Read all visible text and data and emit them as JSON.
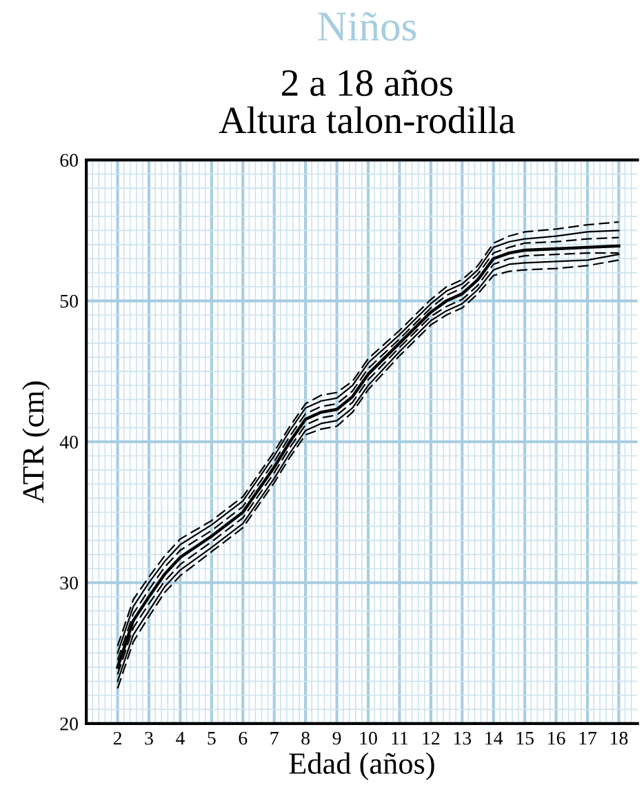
{
  "chart_data": {
    "type": "line",
    "title": "Niños",
    "subtitle": "2 a 18 años\nAltura talon-rodilla",
    "xlabel": "Edad (años)",
    "ylabel": "ATR (cm)",
    "x": [
      2,
      2.5,
      3,
      3.5,
      4,
      5,
      6,
      7,
      7.5,
      8,
      8.5,
      9,
      9.5,
      10,
      11,
      12,
      12.5,
      13,
      13.5,
      14,
      14.5,
      15,
      16,
      17,
      18
    ],
    "series": [
      {
        "color": "#000000",
        "line_style": "dashed",
        "values": [
          25.5,
          28.8,
          30.4,
          31.9,
          33.1,
          34.4,
          36.1,
          39.3,
          41.1,
          42.7,
          43.3,
          43.5,
          44.3,
          45.9,
          47.9,
          50.1,
          51.0,
          51.5,
          52.5,
          54.1,
          54.6,
          54.9,
          55.1,
          55.4,
          55.6
        ]
      },
      {
        "color": "#000000",
        "line_style": "solid",
        "values": [
          25.0,
          28.3,
          30.0,
          31.5,
          32.7,
          34.1,
          35.8,
          39.0,
          40.8,
          42.4,
          42.9,
          43.1,
          44.0,
          45.6,
          47.6,
          49.8,
          50.7,
          51.2,
          52.2,
          53.8,
          54.2,
          54.4,
          54.6,
          54.9,
          55.0
        ]
      },
      {
        "color": "#000000",
        "line_style": "dashed",
        "values": [
          24.5,
          27.8,
          29.5,
          31.1,
          32.3,
          33.7,
          35.4,
          38.6,
          40.4,
          42.0,
          42.5,
          42.7,
          43.6,
          45.2,
          47.3,
          49.5,
          50.4,
          50.9,
          51.9,
          53.4,
          53.8,
          54.1,
          54.2,
          54.4,
          54.5
        ]
      },
      {
        "color": "#000000",
        "line_style": "solid",
        "values": [
          24.0,
          27.3,
          29.0,
          30.6,
          31.8,
          33.3,
          35.0,
          38.2,
          40.0,
          41.6,
          42.1,
          42.3,
          43.2,
          44.8,
          47.0,
          49.2,
          50.0,
          50.5,
          51.5,
          53.0,
          53.4,
          53.6,
          53.7,
          53.8,
          53.9
        ]
      },
      {
        "color": "#000000",
        "line_style": "dashed",
        "values": [
          23.5,
          26.8,
          28.5,
          30.1,
          31.3,
          32.9,
          34.6,
          37.8,
          39.6,
          41.2,
          41.7,
          41.9,
          42.8,
          44.4,
          46.7,
          48.9,
          49.6,
          50.1,
          51.1,
          52.6,
          53.0,
          53.2,
          53.3,
          53.4,
          53.4
        ]
      },
      {
        "color": "#000000",
        "line_style": "solid",
        "values": [
          23.0,
          26.3,
          28.0,
          29.7,
          30.9,
          32.5,
          34.2,
          37.4,
          39.2,
          40.8,
          41.3,
          41.5,
          42.4,
          44.0,
          46.4,
          48.6,
          49.3,
          49.8,
          50.8,
          52.2,
          52.6,
          52.7,
          52.8,
          52.9,
          53.3
        ]
      },
      {
        "color": "#000000",
        "line_style": "dashed",
        "values": [
          22.5,
          25.8,
          27.6,
          29.3,
          30.5,
          32.2,
          33.9,
          37.1,
          38.9,
          40.5,
          40.9,
          41.1,
          42.1,
          43.7,
          46.1,
          48.3,
          49.0,
          49.5,
          50.5,
          51.8,
          52.1,
          52.2,
          52.3,
          52.5,
          52.9
        ]
      }
    ],
    "xlim": [
      1,
      18.6
    ],
    "ylim": [
      20,
      60
    ],
    "xticks": [
      2,
      3,
      4,
      5,
      6,
      7,
      8,
      9,
      10,
      11,
      12,
      13,
      14,
      15,
      16,
      17,
      18
    ],
    "yticks": [
      20,
      30,
      40,
      50,
      60
    ],
    "grid": true
  }
}
